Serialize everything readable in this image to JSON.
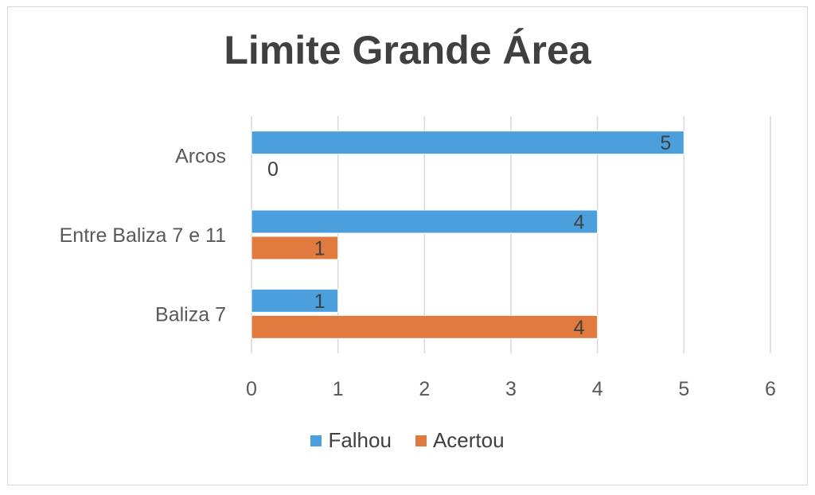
{
  "chart_data": {
    "type": "bar",
    "orientation": "horizontal",
    "title": "Limite Grande Área",
    "categories": [
      "Baliza 7",
      "Entre Baliza 7 e 11",
      "Arcos"
    ],
    "series": [
      {
        "name": "Falhou",
        "values": [
          1,
          4,
          5
        ],
        "color": "#4a9fdc"
      },
      {
        "name": "Acertou",
        "values": [
          4,
          1,
          0
        ],
        "color": "#e07a3f"
      }
    ],
    "xlim": [
      0,
      6
    ],
    "xticks": [
      "0",
      "1",
      "2",
      "3",
      "4",
      "5",
      "6"
    ],
    "grid": true,
    "legend_position": "bottom",
    "data_labels": true
  }
}
